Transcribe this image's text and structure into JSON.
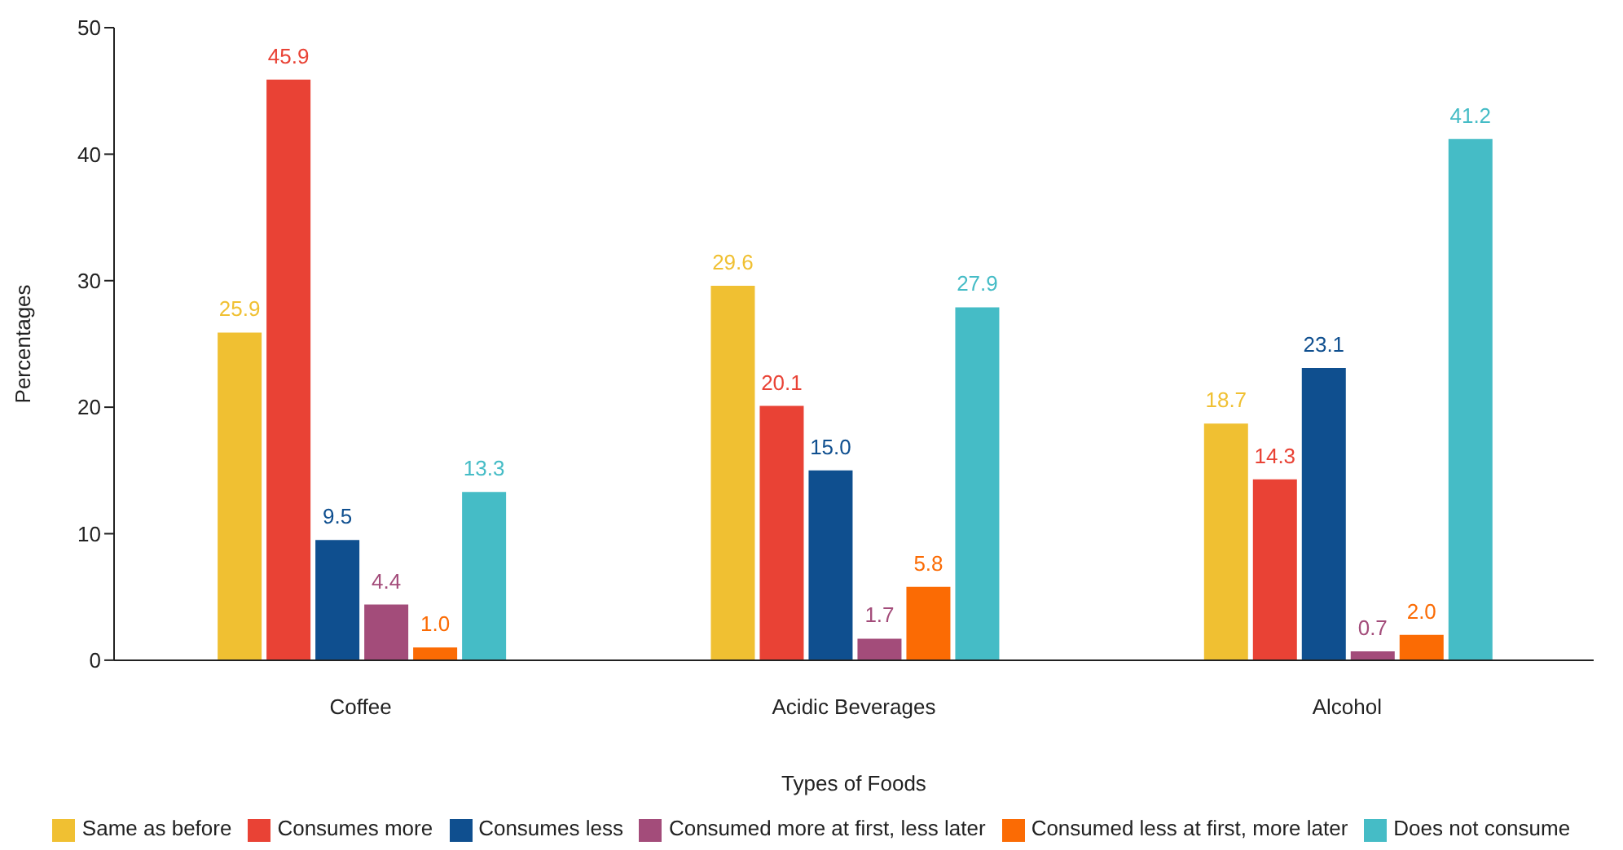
{
  "chart_data": {
    "type": "bar",
    "xlabel": "Types of Foods",
    "ylabel": "Percentages",
    "categories": [
      "Coffee",
      "Acidic Beverages",
      "Alcohol"
    ],
    "ylim": [
      0,
      50
    ],
    "yticks": [
      0,
      10,
      20,
      30,
      40,
      50
    ],
    "grid": false,
    "legend": "bottom",
    "series": [
      {
        "name": "Same as before",
        "color": "#f0c032",
        "values": [
          25.9,
          29.6,
          18.7
        ],
        "value_labels": [
          "25.9",
          "29.6",
          "18.7"
        ]
      },
      {
        "name": "Consumes more",
        "color": "#e94235",
        "values": [
          45.9,
          20.1,
          14.3
        ],
        "value_labels": [
          "45.9",
          "20.1",
          "14.3"
        ]
      },
      {
        "name": "Consumes less",
        "color": "#0f4f8f",
        "values": [
          9.5,
          15.0,
          23.1
        ],
        "value_labels": [
          "9.5",
          "15.0",
          "23.1"
        ]
      },
      {
        "name": "Consumed more at first, less later",
        "color": "#a34c7a",
        "values": [
          4.4,
          1.7,
          0.7
        ],
        "value_labels": [
          "4.4",
          "1.7",
          "0.7"
        ]
      },
      {
        "name": "Consumed less at first, more later",
        "color": "#fb6b04",
        "values": [
          1.0,
          5.8,
          2.0
        ],
        "value_labels": [
          "1.0",
          "5.8",
          "2.0"
        ]
      },
      {
        "name": "Does not consume",
        "color": "#45bcc6",
        "values": [
          13.3,
          27.9,
          41.2
        ],
        "value_labels": [
          "13.3",
          "27.9",
          "41.2"
        ]
      }
    ]
  }
}
